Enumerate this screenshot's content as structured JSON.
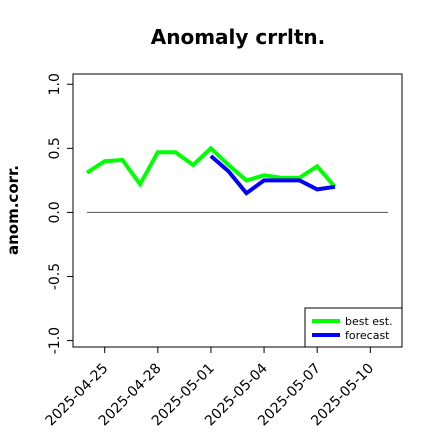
{
  "chart_data": {
    "type": "line",
    "title": "Anomaly crrltn.",
    "ylabel": "anom.corr.",
    "xlabel": "",
    "x_tick_labels": [
      "2025-04-25",
      "2025-04-28",
      "2025-05-01",
      "2025-05-04",
      "2025-05-07",
      "2025-05-10"
    ],
    "x_tick_dates": [
      "2025-04-25",
      "2025-04-28",
      "2025-05-01",
      "2025-05-04",
      "2025-05-07",
      "2025-05-10"
    ],
    "highlight_tick": "2025-05-01",
    "highlight_color": "#228B22",
    "y_ticks": [
      -1.0,
      -0.5,
      0.0,
      0.5,
      1.0
    ],
    "y_tick_labels": [
      "-1.0",
      "-0.5",
      "0.0",
      "0.5",
      "1.0"
    ],
    "xlim": [
      "2025-04-24",
      "2025-05-11"
    ],
    "ylim": [
      -1.05,
      1.08
    ],
    "reference_line": {
      "y": 0,
      "from": "2025-04-24",
      "to": "2025-05-11",
      "color": "#555555"
    },
    "legend_position": "bottom-right",
    "series": [
      {
        "name": "best est.",
        "color": "#00ff00",
        "x": [
          "2025-04-24",
          "2025-04-25",
          "2025-04-26",
          "2025-04-27",
          "2025-04-28",
          "2025-04-29",
          "2025-04-30",
          "2025-05-01",
          "2025-05-02",
          "2025-05-03",
          "2025-05-04",
          "2025-05-05",
          "2025-05-06",
          "2025-05-07",
          "2025-05-08"
        ],
        "values": [
          0.31,
          0.4,
          0.41,
          0.22,
          0.47,
          0.47,
          0.37,
          0.5,
          0.37,
          0.25,
          0.29,
          0.27,
          0.27,
          0.36,
          0.2
        ]
      },
      {
        "name": "forecast",
        "color": "#0000ff",
        "x": [
          "2025-05-01",
          "2025-05-02",
          "2025-05-03",
          "2025-05-04",
          "2025-05-05",
          "2025-05-06",
          "2025-05-07",
          "2025-05-08"
        ],
        "values": [
          0.44,
          0.32,
          0.15,
          0.25,
          0.25,
          0.25,
          0.18,
          0.2
        ]
      }
    ]
  }
}
